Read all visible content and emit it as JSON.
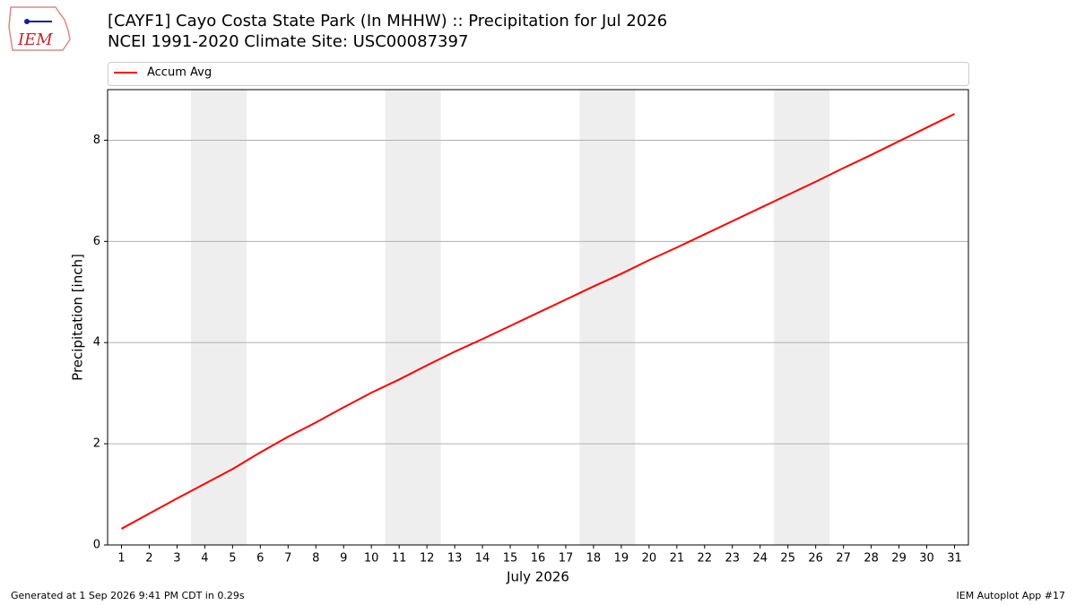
{
  "logo": "IEM",
  "footer": {
    "left": "Generated at 1 Sep 2026 9:41 PM CDT in 0.29s",
    "right": "IEM Autoplot App #17"
  },
  "chart_data": {
    "type": "line",
    "title": "[CAYF1] Cayo Costa State Park (In MHHW) :: Precipitation for Jul 2026",
    "subtitle": "NCEI 1991-2020 Climate Site: USC00087397",
    "xlabel": "July 2026",
    "ylabel": "Precipitation [inch]",
    "x": [
      1,
      2,
      3,
      4,
      5,
      6,
      7,
      8,
      9,
      10,
      11,
      12,
      13,
      14,
      15,
      16,
      17,
      18,
      19,
      20,
      21,
      22,
      23,
      24,
      25,
      26,
      27,
      28,
      29,
      30,
      31
    ],
    "series": [
      {
        "name": "Accum Avg",
        "color": "#ff0000",
        "values": [
          0.32,
          0.62,
          0.92,
          1.21,
          1.5,
          1.83,
          2.14,
          2.42,
          2.72,
          3.01,
          3.27,
          3.55,
          3.82,
          4.07,
          4.33,
          4.59,
          4.85,
          5.11,
          5.36,
          5.63,
          5.88,
          6.14,
          6.4,
          6.66,
          6.92,
          7.18,
          7.45,
          7.71,
          7.98,
          8.25,
          8.52
        ]
      }
    ],
    "shaded_x_ranges": [
      [
        3.5,
        5.5
      ],
      [
        10.5,
        12.5
      ],
      [
        17.5,
        19.5
      ],
      [
        24.5,
        26.5
      ]
    ],
    "shade_color": "#eeeeee",
    "xlim": [
      0.5,
      31.5
    ],
    "xticks": [
      1,
      2,
      3,
      4,
      5,
      6,
      7,
      8,
      9,
      10,
      11,
      12,
      13,
      14,
      15,
      16,
      17,
      18,
      19,
      20,
      21,
      22,
      23,
      24,
      25,
      26,
      27,
      28,
      29,
      30,
      31
    ],
    "ylim": [
      0,
      9
    ],
    "yticks": [
      0,
      2,
      4,
      6,
      8
    ],
    "grid": "y",
    "legend": "top"
  }
}
